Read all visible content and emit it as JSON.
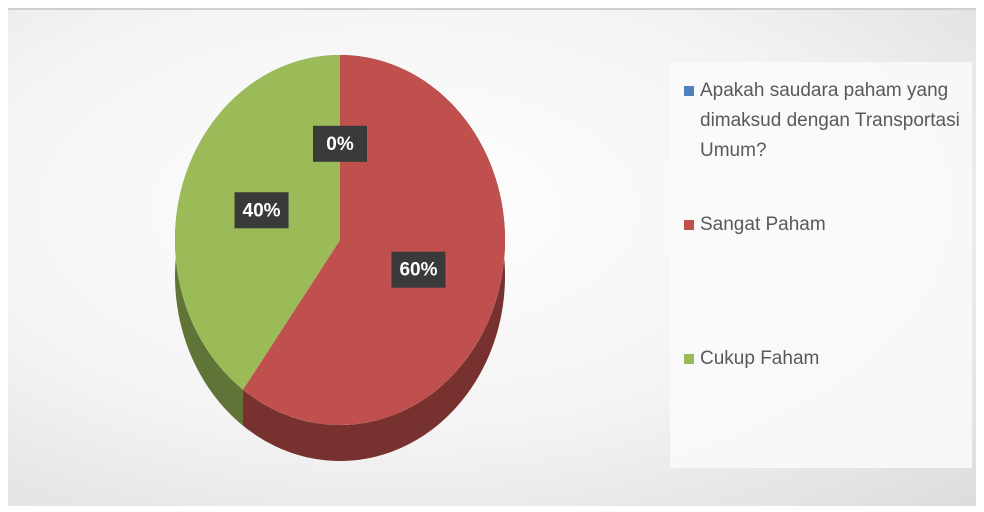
{
  "chart_data": {
    "type": "pie",
    "categories": [
      "Apakah saudara paham yang dimaksud dengan Transportasi Umum?",
      "Sangat Paham",
      "Cukup Faham"
    ],
    "values": [
      0,
      60,
      40
    ],
    "value_labels": [
      "0%",
      "60%",
      "40%"
    ],
    "colors": [
      "#4f81bd",
      "#c0504d",
      "#9bbb59"
    ],
    "legend": "right"
  }
}
